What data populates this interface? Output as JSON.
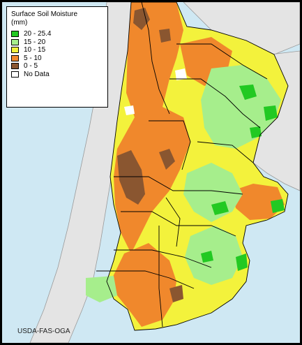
{
  "legend": {
    "title": "Surface Soil Moisture\n(mm)",
    "items": [
      {
        "label": "20 - 25.4",
        "color": "#22c922"
      },
      {
        "label": "15 - 20",
        "color": "#a6ee8c"
      },
      {
        "label": "10 - 15",
        "color": "#f3f23c"
      },
      {
        "label": "5 - 10",
        "color": "#f0882c"
      },
      {
        "label": "0 - 5",
        "color": "#8a5630"
      },
      {
        "label": "No Data",
        "color": "#ffffff"
      }
    ]
  },
  "credit": "USDA-FAS-OGA",
  "colors": {
    "ocean": "#cfe8f3",
    "neighbor_land": "#e4e4e4",
    "boundary": "#000000"
  }
}
